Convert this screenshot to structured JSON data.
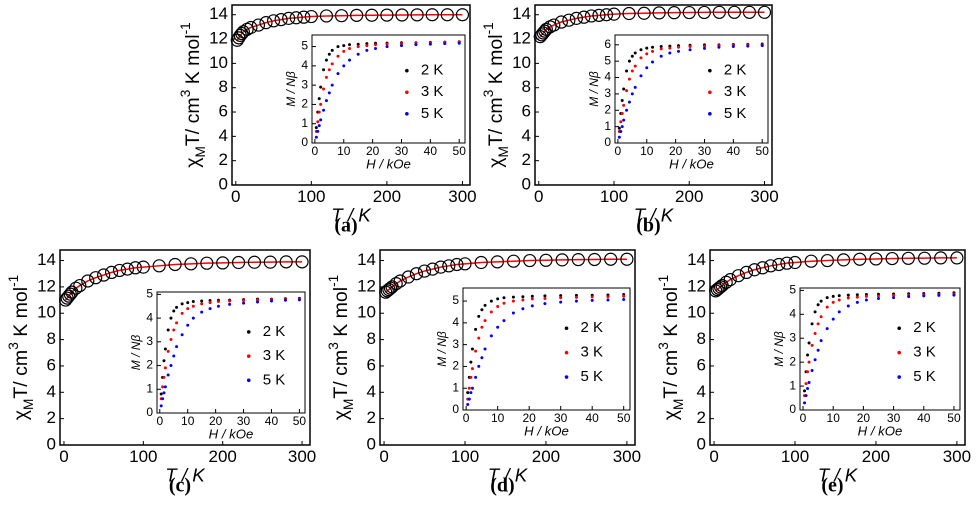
{
  "chart_data": [
    {
      "type": "scatter",
      "label": "(a)",
      "xlabel": "T / K",
      "ylabel": [
        "χ",
        "M",
        "T/ cm",
        "3",
        " K mol",
        "-1"
      ],
      "ylabel_shift": [
        "none",
        "sub",
        "none",
        "super",
        "none",
        "super"
      ],
      "x": [
        2,
        4,
        6,
        8,
        10,
        15,
        20,
        30,
        40,
        50,
        60,
        70,
        80,
        90,
        100,
        120,
        140,
        160,
        180,
        200,
        220,
        240,
        260,
        280,
        300
      ],
      "values": [
        11.9,
        12.1,
        12.3,
        12.45,
        12.6,
        12.8,
        12.95,
        13.15,
        13.35,
        13.5,
        13.6,
        13.7,
        13.75,
        13.8,
        13.85,
        13.9,
        13.92,
        13.95,
        13.96,
        13.97,
        13.98,
        13.99,
        14.0,
        14.0,
        14.0
      ],
      "color": "#000000",
      "line_color": "#ff0000",
      "xlim": [
        -5,
        310
      ],
      "ylim": [
        0,
        14.8
      ],
      "xticks": [
        0,
        100,
        200,
        300
      ],
      "yticks": [
        0,
        2,
        4,
        6,
        8,
        10,
        12,
        14
      ]
    },
    {
      "type": "scatter",
      "xlabel": "H / kOe",
      "ylabel": "M / Nβ",
      "x": [
        0.5,
        1,
        1.5,
        2,
        3,
        4,
        5,
        6,
        8,
        10,
        12,
        15,
        18,
        21,
        25,
        30,
        35,
        40,
        45,
        50
      ],
      "series": [
        {
          "name": "2 K",
          "color": "#000000",
          "values": [
            0.8,
            1.6,
            2.3,
            2.9,
            3.8,
            4.3,
            4.6,
            4.8,
            5.0,
            5.05,
            5.1,
            5.12,
            5.15,
            5.17,
            5.18,
            5.2,
            5.2,
            5.22,
            5.23,
            5.25
          ]
        },
        {
          "name": "3 K",
          "color": "#ff0000",
          "values": [
            0.6,
            1.1,
            1.6,
            2.0,
            2.8,
            3.4,
            3.8,
            4.1,
            4.5,
            4.75,
            4.9,
            5.0,
            5.05,
            5.1,
            5.13,
            5.15,
            5.17,
            5.2,
            5.22,
            5.23
          ]
        },
        {
          "name": "5 K",
          "color": "#0000ff",
          "values": [
            0.3,
            0.6,
            0.9,
            1.2,
            1.7,
            2.2,
            2.6,
            3.0,
            3.6,
            4.0,
            4.3,
            4.6,
            4.8,
            4.9,
            5.0,
            5.05,
            5.1,
            5.13,
            5.15,
            5.17
          ]
        }
      ],
      "xlim": [
        -1,
        52
      ],
      "ylim": [
        0,
        5.6
      ],
      "xticks": [
        0,
        10,
        20,
        30,
        40,
        50
      ],
      "yticks": [
        0,
        1,
        2,
        3,
        4,
        5
      ],
      "legend": "right"
    },
    {
      "type": "scatter",
      "label": "(b)",
      "xlabel": "T / K",
      "ylabel": [
        "χ",
        "M",
        "T/ cm",
        "3",
        " K mol",
        "-1"
      ],
      "ylabel_shift": [
        "none",
        "sub",
        "none",
        "super",
        "none",
        "super"
      ],
      "x": [
        2,
        4,
        6,
        8,
        10,
        15,
        20,
        30,
        40,
        50,
        60,
        70,
        80,
        90,
        100,
        120,
        140,
        160,
        180,
        200,
        220,
        240,
        260,
        280,
        300
      ],
      "values": [
        12.2,
        12.35,
        12.5,
        12.65,
        12.8,
        13.0,
        13.15,
        13.4,
        13.55,
        13.7,
        13.8,
        13.9,
        13.95,
        14.0,
        14.05,
        14.1,
        14.12,
        14.15,
        14.17,
        14.18,
        14.19,
        14.2,
        14.2,
        14.2,
        14.2
      ],
      "color": "#000000",
      "line_color": "#ff0000",
      "xlim": [
        -5,
        310
      ],
      "ylim": [
        0,
        14.8
      ],
      "xticks": [
        0,
        100,
        200,
        300
      ],
      "yticks": [
        0,
        2,
        4,
        6,
        8,
        10,
        12,
        14
      ]
    },
    {
      "type": "scatter",
      "xlabel": "H / kOe",
      "ylabel": "M / Nβ",
      "x": [
        0.5,
        1,
        1.5,
        2,
        3,
        4,
        5,
        6,
        8,
        10,
        12,
        15,
        18,
        21,
        25,
        30,
        35,
        40,
        45,
        50
      ],
      "series": [
        {
          "name": "2 K",
          "color": "#000000",
          "values": [
            0.9,
            1.8,
            2.6,
            3.3,
            4.4,
            5.0,
            5.3,
            5.5,
            5.7,
            5.8,
            5.85,
            5.9,
            5.92,
            5.95,
            5.97,
            6.0,
            6.0,
            6.02,
            6.03,
            6.05
          ]
        },
        {
          "name": "3 K",
          "color": "#ff0000",
          "values": [
            0.7,
            1.3,
            1.8,
            2.3,
            3.2,
            3.9,
            4.4,
            4.7,
            5.2,
            5.45,
            5.6,
            5.75,
            5.8,
            5.85,
            5.9,
            5.92,
            5.95,
            5.97,
            6.0,
            6.0
          ]
        },
        {
          "name": "5 K",
          "color": "#0000ff",
          "values": [
            0.35,
            0.7,
            1.0,
            1.4,
            2.0,
            2.5,
            3.0,
            3.4,
            4.1,
            4.6,
            4.95,
            5.3,
            5.5,
            5.6,
            5.7,
            5.78,
            5.85,
            5.9,
            5.92,
            5.95
          ]
        }
      ],
      "xlim": [
        -1,
        52
      ],
      "ylim": [
        0,
        6.6
      ],
      "xticks": [
        0,
        10,
        20,
        30,
        40,
        50
      ],
      "yticks": [
        0,
        1,
        2,
        3,
        4,
        5,
        6
      ],
      "legend": "right"
    },
    {
      "type": "scatter",
      "label": "(c)",
      "xlabel": "T / K",
      "ylabel": [
        "χ",
        "M",
        "T/ cm",
        "3",
        " K mol",
        "-1"
      ],
      "ylabel_shift": [
        "none",
        "sub",
        "none",
        "super",
        "none",
        "super"
      ],
      "x": [
        2,
        4,
        6,
        8,
        10,
        15,
        20,
        30,
        40,
        50,
        60,
        70,
        80,
        90,
        100,
        120,
        140,
        160,
        180,
        200,
        220,
        240,
        260,
        280,
        300
      ],
      "values": [
        11.0,
        11.15,
        11.3,
        11.45,
        11.6,
        11.9,
        12.1,
        12.45,
        12.7,
        12.9,
        13.1,
        13.25,
        13.35,
        13.45,
        13.5,
        13.6,
        13.7,
        13.75,
        13.8,
        13.82,
        13.85,
        13.87,
        13.88,
        13.9,
        13.9
      ],
      "color": "#000000",
      "line_color": "#ff0000",
      "xlim": [
        -5,
        310
      ],
      "ylim": [
        0,
        14.8
      ],
      "xticks": [
        0,
        100,
        200,
        300
      ],
      "yticks": [
        0,
        2,
        4,
        6,
        8,
        10,
        12,
        14
      ]
    },
    {
      "type": "scatter",
      "xlabel": "H / kOe",
      "ylabel": "M / Nβ",
      "x": [
        0.5,
        1,
        1.5,
        2,
        3,
        4,
        5,
        6,
        8,
        10,
        12,
        15,
        18,
        21,
        25,
        30,
        35,
        40,
        45,
        50
      ],
      "series": [
        {
          "name": "2 K",
          "color": "#000000",
          "values": [
            0.8,
            1.5,
            2.2,
            2.7,
            3.5,
            4.0,
            4.3,
            4.45,
            4.6,
            4.65,
            4.7,
            4.72,
            4.74,
            4.75,
            4.76,
            4.78,
            4.8,
            4.8,
            4.82,
            4.83
          ]
        },
        {
          "name": "3 K",
          "color": "#ff0000",
          "values": [
            0.6,
            1.1,
            1.5,
            1.9,
            2.6,
            3.1,
            3.5,
            3.8,
            4.2,
            4.4,
            4.5,
            4.6,
            4.65,
            4.7,
            4.72,
            4.74,
            4.76,
            4.78,
            4.8,
            4.8
          ]
        },
        {
          "name": "5 K",
          "color": "#0000ff",
          "values": [
            0.3,
            0.6,
            0.85,
            1.1,
            1.6,
            2.0,
            2.4,
            2.8,
            3.3,
            3.7,
            4.0,
            4.25,
            4.4,
            4.5,
            4.58,
            4.63,
            4.68,
            4.72,
            4.75,
            4.77
          ]
        }
      ],
      "xlim": [
        -1,
        52
      ],
      "ylim": [
        0,
        5.1
      ],
      "xticks": [
        0,
        10,
        20,
        30,
        40,
        50
      ],
      "yticks": [
        0,
        1,
        2,
        3,
        4,
        5
      ],
      "legend": "right"
    },
    {
      "type": "scatter",
      "label": "(d)",
      "xlabel": "T / K",
      "ylabel": [
        "χ",
        "M",
        "T/ cm",
        "3",
        " K mol",
        "-1"
      ],
      "ylabel_shift": [
        "none",
        "sub",
        "none",
        "super",
        "none",
        "super"
      ],
      "x": [
        2,
        4,
        6,
        8,
        10,
        15,
        20,
        30,
        40,
        50,
        60,
        70,
        80,
        90,
        100,
        120,
        140,
        160,
        180,
        200,
        220,
        240,
        260,
        280,
        300
      ],
      "values": [
        11.6,
        11.7,
        11.8,
        11.9,
        12.0,
        12.25,
        12.45,
        12.75,
        13.0,
        13.2,
        13.35,
        13.5,
        13.6,
        13.7,
        13.75,
        13.85,
        13.9,
        13.95,
        14.0,
        14.02,
        14.05,
        14.07,
        14.08,
        14.1,
        14.1
      ],
      "color": "#000000",
      "line_color": "#ff0000",
      "xlim": [
        -5,
        310
      ],
      "ylim": [
        0,
        14.8
      ],
      "xticks": [
        0,
        100,
        200,
        300
      ],
      "yticks": [
        0,
        2,
        4,
        6,
        8,
        10,
        12,
        14
      ]
    },
    {
      "type": "scatter",
      "xlabel": "H / kOe",
      "ylabel": "M / Nβ",
      "x": [
        0.5,
        1,
        1.5,
        2,
        3,
        4,
        5,
        6,
        8,
        10,
        12,
        15,
        18,
        21,
        25,
        30,
        35,
        40,
        45,
        50
      ],
      "series": [
        {
          "name": "2 K",
          "color": "#000000",
          "values": [
            0.8,
            1.5,
            2.2,
            2.8,
            3.7,
            4.3,
            4.6,
            4.8,
            5.0,
            5.1,
            5.15,
            5.18,
            5.2,
            5.22,
            5.24,
            5.25,
            5.26,
            5.27,
            5.28,
            5.3
          ]
        },
        {
          "name": "3 K",
          "color": "#ff0000",
          "values": [
            0.5,
            1.0,
            1.5,
            1.9,
            2.7,
            3.3,
            3.8,
            4.1,
            4.5,
            4.75,
            4.9,
            5.0,
            5.05,
            5.1,
            5.12,
            5.15,
            5.17,
            5.19,
            5.2,
            5.22
          ]
        },
        {
          "name": "5 K",
          "color": "#0000ff",
          "values": [
            0.25,
            0.5,
            0.8,
            1.0,
            1.5,
            2.0,
            2.4,
            2.8,
            3.4,
            3.8,
            4.1,
            4.45,
            4.65,
            4.78,
            4.88,
            4.95,
            5.0,
            5.03,
            5.05,
            5.07
          ]
        }
      ],
      "xlim": [
        -1,
        52
      ],
      "ylim": [
        0,
        5.6
      ],
      "xticks": [
        0,
        10,
        20,
        30,
        40,
        50
      ],
      "yticks": [
        0,
        1,
        2,
        3,
        4,
        5
      ],
      "legend": "right"
    },
    {
      "type": "scatter",
      "label": "(e)",
      "xlabel": "T / K",
      "ylabel": [
        "χ",
        "M",
        "T/ cm",
        "3",
        " K mol",
        "-1"
      ],
      "ylabel_shift": [
        "none",
        "sub",
        "none",
        "super",
        "none",
        "super"
      ],
      "x": [
        2,
        4,
        6,
        8,
        10,
        15,
        20,
        30,
        40,
        50,
        60,
        70,
        80,
        90,
        100,
        120,
        140,
        160,
        180,
        200,
        220,
        240,
        260,
        280,
        300
      ],
      "values": [
        11.7,
        11.8,
        11.9,
        12.0,
        12.1,
        12.35,
        12.55,
        12.85,
        13.1,
        13.3,
        13.45,
        13.6,
        13.7,
        13.8,
        13.85,
        13.95,
        14.0,
        14.05,
        14.1,
        14.12,
        14.15,
        14.17,
        14.18,
        14.2,
        14.2
      ],
      "color": "#000000",
      "line_color": "#ff0000",
      "xlim": [
        -5,
        310
      ],
      "ylim": [
        0,
        14.8
      ],
      "xticks": [
        0,
        100,
        200,
        300
      ],
      "yticks": [
        0,
        2,
        4,
        6,
        8,
        10,
        12,
        14
      ]
    },
    {
      "type": "scatter",
      "xlabel": "H / kOe",
      "ylabel": "M / Nβ",
      "x": [
        0.5,
        1,
        1.5,
        2,
        3,
        4,
        5,
        6,
        8,
        10,
        12,
        15,
        18,
        21,
        25,
        30,
        35,
        40,
        45,
        50
      ],
      "series": [
        {
          "name": "2 K",
          "color": "#000000",
          "values": [
            0.8,
            1.6,
            2.3,
            2.8,
            3.6,
            4.1,
            4.4,
            4.55,
            4.7,
            4.75,
            4.78,
            4.8,
            4.82,
            4.83,
            4.84,
            4.85,
            4.86,
            4.87,
            4.88,
            4.9
          ]
        },
        {
          "name": "3 K",
          "color": "#ff0000",
          "values": [
            0.6,
            1.1,
            1.6,
            2.0,
            2.7,
            3.2,
            3.6,
            3.9,
            4.3,
            4.5,
            4.6,
            4.68,
            4.72,
            4.75,
            4.77,
            4.79,
            4.8,
            4.82,
            4.83,
            4.85
          ]
        },
        {
          "name": "5 K",
          "color": "#0000ff",
          "values": [
            0.3,
            0.6,
            0.9,
            1.15,
            1.65,
            2.1,
            2.5,
            2.9,
            3.4,
            3.8,
            4.1,
            4.35,
            4.5,
            4.6,
            4.66,
            4.7,
            4.74,
            4.77,
            4.79,
            4.8
          ]
        }
      ],
      "xlim": [
        -1,
        52
      ],
      "ylim": [
        0,
        5.1
      ],
      "xticks": [
        0,
        10,
        20,
        30,
        40,
        50
      ],
      "yticks": [
        0,
        1,
        2,
        3,
        4,
        5
      ],
      "legend": "right"
    }
  ]
}
